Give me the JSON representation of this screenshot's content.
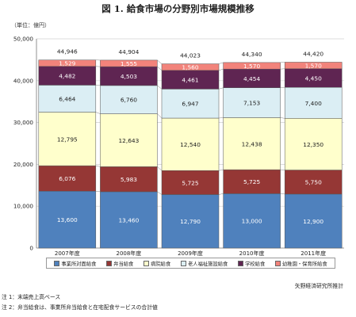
{
  "title": "図 1. 給食市場の分野別市場規模推移",
  "unit_label": "（単位：億円）",
  "source": "矢野経済研究所推計",
  "notes": [
    "注 1：末端売上高ベース",
    "注 2：弁当給食は、事業所弁当給食と在宅配食サービスの合計値"
  ],
  "chart_data": {
    "type": "bar",
    "stacked": true,
    "categories": [
      "2007年度",
      "2008年度",
      "2009年度",
      "2010年度",
      "2011年度"
    ],
    "totals": [
      44946,
      44904,
      44023,
      44340,
      44420
    ],
    "total_labels": [
      "44,946",
      "44,904",
      "44,023",
      "44,340",
      "44,420"
    ],
    "ylim": [
      0,
      50000
    ],
    "yticks": [
      0,
      10000,
      20000,
      30000,
      40000,
      50000
    ],
    "ytick_labels": [
      "0",
      "10,000",
      "20,000",
      "30,000",
      "40,000",
      "50,000"
    ],
    "grid": true,
    "legend_position": "bottom",
    "series": [
      {
        "name": "事業所対面給食",
        "color": "#4f81bd",
        "label_color": "#ffffff",
        "values": [
          13600,
          13460,
          12790,
          13000,
          12900
        ],
        "labels": [
          "13,600",
          "13,460",
          "12,790",
          "13,000",
          "12,900"
        ]
      },
      {
        "name": "弁当給食",
        "color": "#953735",
        "label_color": "#ffffff",
        "values": [
          6076,
          5983,
          5725,
          5725,
          5750
        ],
        "labels": [
          "6,076",
          "5,983",
          "5,725",
          "5,725",
          "5,750"
        ]
      },
      {
        "name": "病院給食",
        "color": "#ffffcc",
        "label_color": "#222222",
        "values": [
          12795,
          12643,
          12540,
          12438,
          12350
        ],
        "labels": [
          "12,795",
          "12,643",
          "12,540",
          "12,438",
          "12,350"
        ]
      },
      {
        "name": "老人福祉施設給食",
        "color": "#dbeef4",
        "label_color": "#222222",
        "values": [
          6464,
          6760,
          6947,
          7153,
          7400
        ],
        "labels": [
          "6,464",
          "6,760",
          "6,947",
          "7,153",
          "7,400"
        ]
      },
      {
        "name": "学校給食",
        "color": "#5f2552",
        "label_color": "#ffffff",
        "values": [
          4482,
          4503,
          4461,
          4454,
          4450
        ],
        "labels": [
          "4,482",
          "4,503",
          "4,461",
          "4,454",
          "4,450"
        ]
      },
      {
        "name": "幼稚園・保育所給食",
        "color": "#f2837b",
        "label_color": "#ffffff",
        "values": [
          1529,
          1555,
          1560,
          1570,
          1570
        ],
        "labels": [
          "1,529",
          "1,555",
          "1,560",
          "1,570",
          "1,570"
        ]
      }
    ]
  }
}
